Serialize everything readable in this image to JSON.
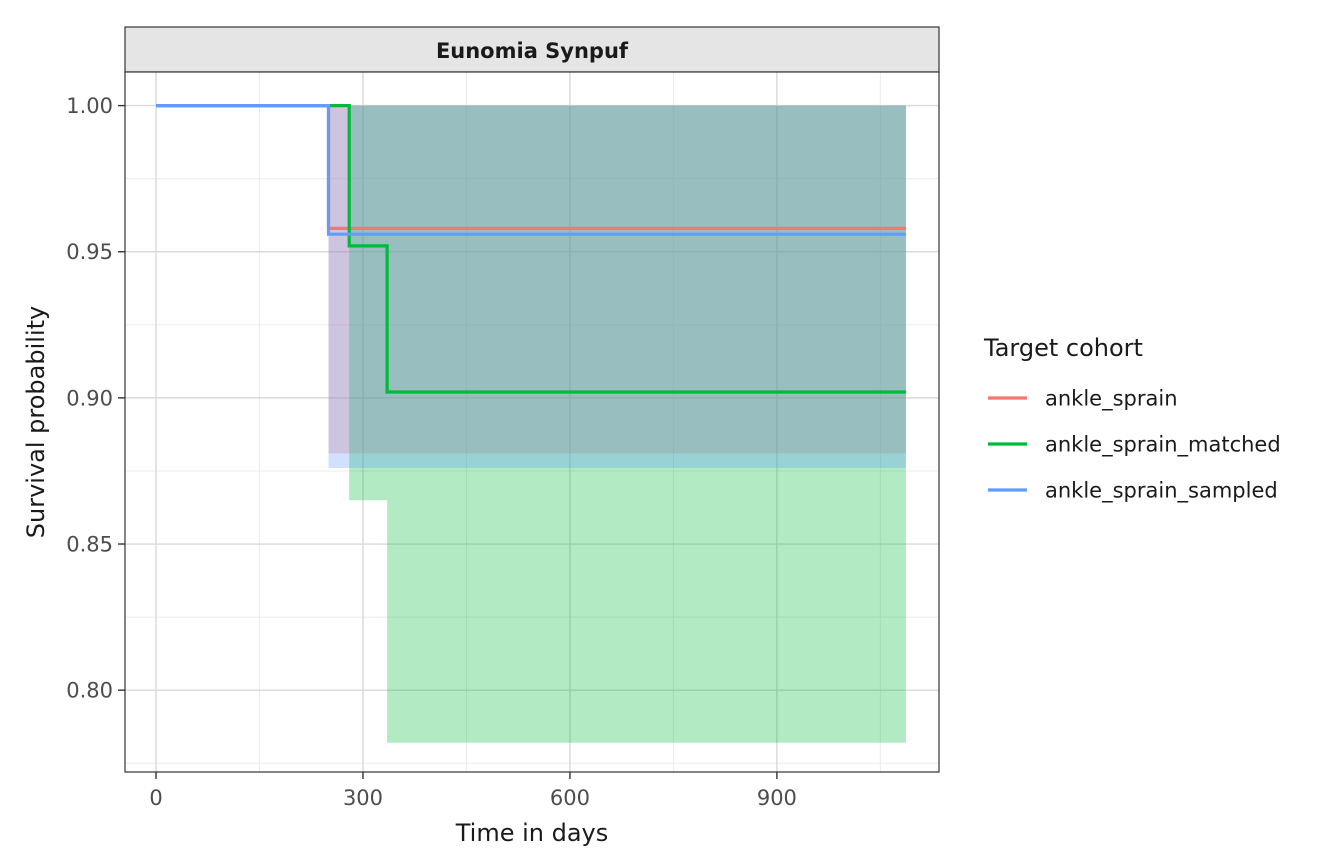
{
  "chart_data": {
    "type": "line",
    "subtype": "kaplan-meier-step",
    "facet_title": "Eunomia Synpuf",
    "xlabel": "Time in days",
    "ylabel": "Survival probability",
    "xlim": [
      -45,
      1135
    ],
    "ylim": [
      0.772,
      1.0115
    ],
    "x_ticks": [
      0,
      300,
      600,
      900
    ],
    "x_tick_labels": [
      "0",
      "300",
      "600",
      "900"
    ],
    "y_ticks": [
      0.8,
      0.85,
      0.9,
      0.95,
      1.0
    ],
    "y_tick_labels": [
      "0.80",
      "0.85",
      "0.90",
      "0.95",
      "1.00"
    ],
    "grid": true,
    "legend": {
      "title": "Target cohort",
      "position": "right"
    },
    "series": [
      {
        "name": "ankle_sprain",
        "color": "#F8766D",
        "x": [
          0,
          250,
          1087
        ],
        "y": [
          1.0,
          0.958,
          0.958
        ],
        "ci_lower": [
          1.0,
          0.881,
          0.881
        ],
        "ci_upper": [
          1.0,
          1.0,
          1.0
        ],
        "fill": "#F8766D"
      },
      {
        "name": "ankle_sprain_matched",
        "color": "#00BA38",
        "x": [
          0,
          280,
          335,
          1087
        ],
        "y": [
          1.0,
          0.952,
          0.902,
          0.902
        ],
        "ci_lower": [
          1.0,
          0.865,
          0.782,
          0.782
        ],
        "ci_upper": [
          1.0,
          1.0,
          1.0,
          1.0
        ],
        "fill": "#00BA38"
      },
      {
        "name": "ankle_sprain_sampled",
        "color": "#619CFF",
        "x": [
          0,
          250,
          1087
        ],
        "y": [
          1.0,
          0.956,
          0.956
        ],
        "ci_lower": [
          1.0,
          0.876,
          0.876
        ],
        "ci_upper": [
          1.0,
          1.0,
          1.0
        ],
        "fill": "#619CFF"
      }
    ]
  }
}
